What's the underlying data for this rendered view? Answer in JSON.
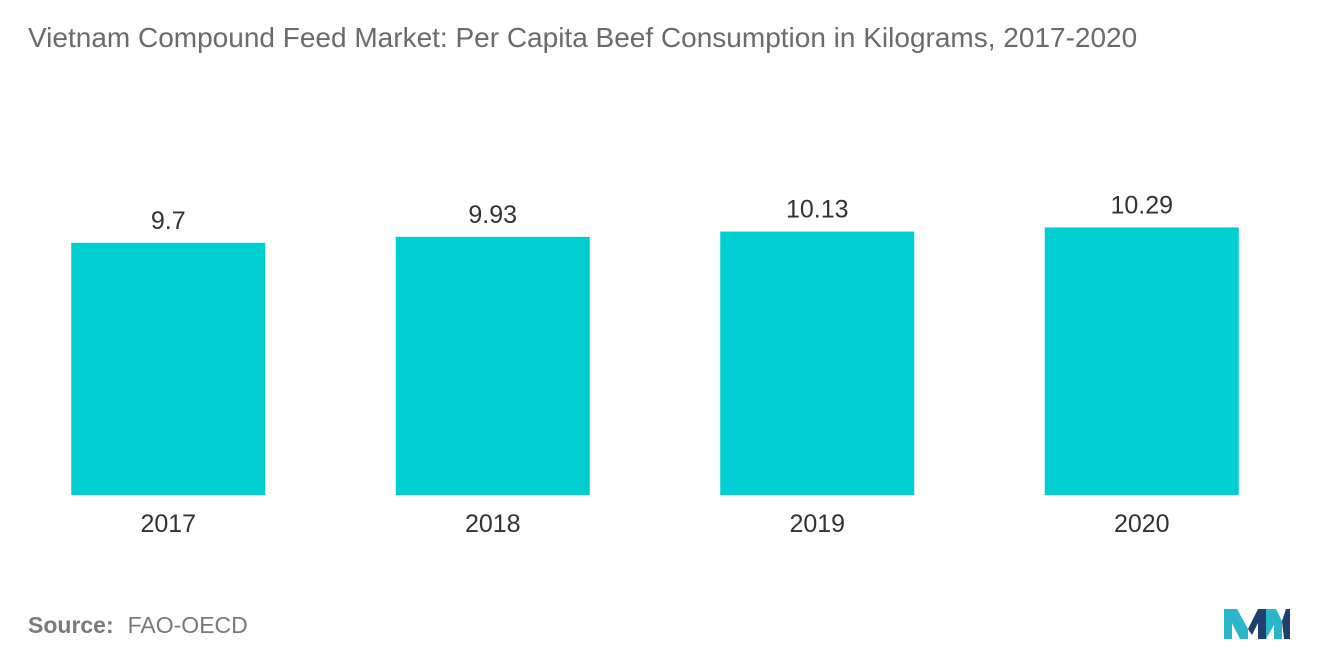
{
  "title": "Vietnam Compound Feed Market: Per Capita Beef Consumption in Kilograms, 2017-2020",
  "source": {
    "label": "Source:",
    "value": "FAO-OECD"
  },
  "colors": {
    "bar": "#00CED1",
    "text": "#333333",
    "muted": "#7a7a7a",
    "logo_dark": "#1f3f6e",
    "logo_light": "#2bb5c8"
  },
  "chart_data": {
    "type": "bar",
    "title": "Vietnam Compound Feed Market: Per Capita Beef Consumption in Kilograms, 2017-2020",
    "categories": [
      "2017",
      "2018",
      "2019",
      "2020"
    ],
    "values": [
      9.7,
      9.93,
      10.13,
      10.29
    ],
    "data_labels": [
      "9.7",
      "9.93",
      "10.13",
      "10.29"
    ],
    "xlabel": "",
    "ylabel": "",
    "grid": false,
    "y_axis_visible": false
  }
}
